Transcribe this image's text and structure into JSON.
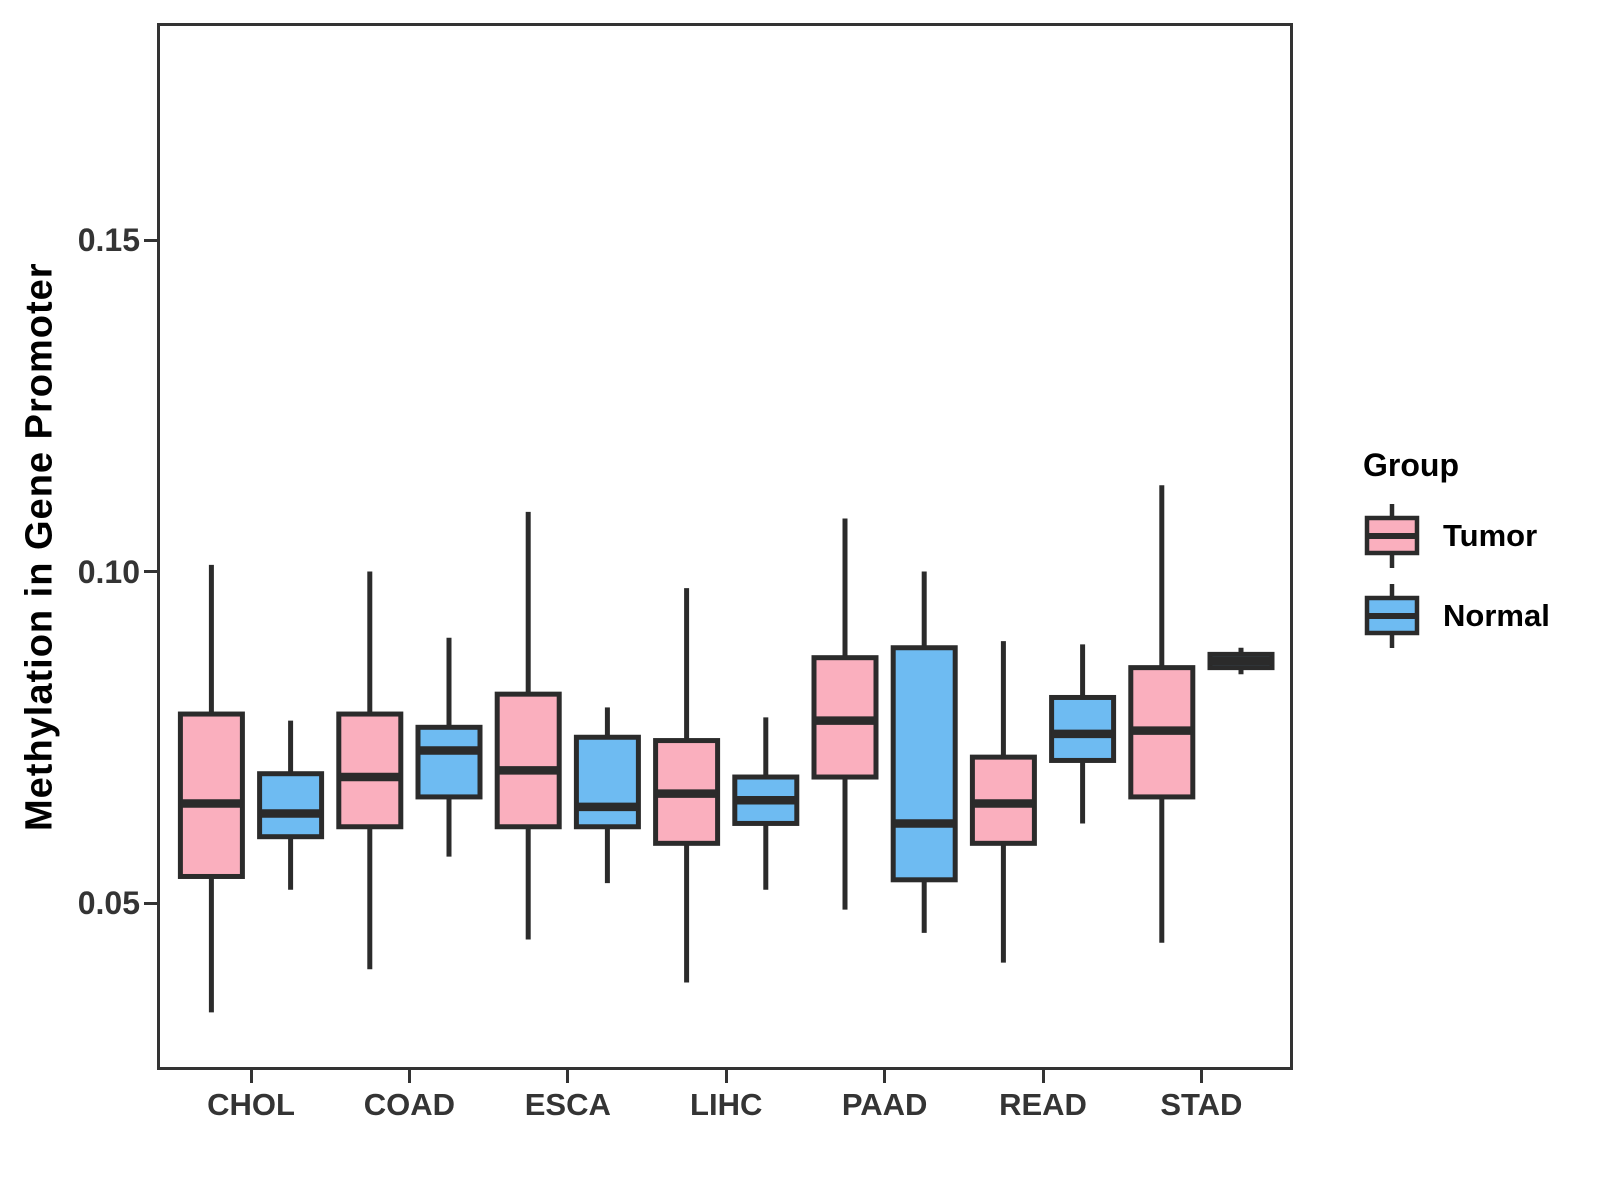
{
  "chart_data": {
    "type": "boxplot",
    "title": "",
    "xlabel": "",
    "ylabel": "Methylation in Gene Promoter",
    "categories": [
      "CHOL",
      "COAD",
      "ESCA",
      "LIHC",
      "PAAD",
      "READ",
      "STAD"
    ],
    "y_tick_labels": [
      "0.05",
      "0.10",
      "0.15"
    ],
    "y_tick_values": [
      0.05,
      0.1,
      0.15
    ],
    "ylim": [
      0.025,
      0.183
    ],
    "grid": false,
    "legend": {
      "title": "Group",
      "position": "right",
      "entries": [
        {
          "label": "Tumor",
          "color": "#FAAFBE"
        },
        {
          "label": "Normal",
          "color": "#6EBBF2"
        }
      ]
    },
    "colors": {
      "tumor_fill": "#FAAFBE",
      "normal_fill": "#6EBBF2",
      "box_outline": "#2B2B2B",
      "panel_border": "#333333",
      "tick_text": "#343434",
      "title_text": "#000000",
      "background": "#FFFFFF"
    },
    "series": [
      {
        "name": "Tumor",
        "color": "#FAAFBE",
        "boxes": [
          {
            "category": "CHOL",
            "min": 0.0335,
            "q1": 0.054,
            "median": 0.065,
            "q3": 0.0785,
            "max": 0.101
          },
          {
            "category": "COAD",
            "min": 0.04,
            "q1": 0.0615,
            "median": 0.069,
            "q3": 0.0785,
            "max": 0.1
          },
          {
            "category": "ESCA",
            "min": 0.0445,
            "q1": 0.0615,
            "median": 0.07,
            "q3": 0.0815,
            "max": 0.109
          },
          {
            "category": "LIHC",
            "min": 0.038,
            "q1": 0.059,
            "median": 0.0665,
            "q3": 0.0745,
            "max": 0.0975
          },
          {
            "category": "PAAD",
            "min": 0.049,
            "q1": 0.069,
            "median": 0.0775,
            "q3": 0.087,
            "max": 0.108
          },
          {
            "category": "READ",
            "min": 0.041,
            "q1": 0.059,
            "median": 0.065,
            "q3": 0.072,
            "max": 0.0895
          },
          {
            "category": "STAD",
            "min": 0.044,
            "q1": 0.066,
            "median": 0.076,
            "q3": 0.0855,
            "max": 0.113
          }
        ]
      },
      {
        "name": "Normal",
        "color": "#6EBBF2",
        "boxes": [
          {
            "category": "CHOL",
            "min": 0.052,
            "q1": 0.06,
            "median": 0.0635,
            "q3": 0.0695,
            "max": 0.0775
          },
          {
            "category": "COAD",
            "min": 0.057,
            "q1": 0.066,
            "median": 0.073,
            "q3": 0.0765,
            "max": 0.09
          },
          {
            "category": "ESCA",
            "min": 0.053,
            "q1": 0.0615,
            "median": 0.0645,
            "q3": 0.075,
            "max": 0.0795
          },
          {
            "category": "LIHC",
            "min": 0.052,
            "q1": 0.062,
            "median": 0.0655,
            "q3": 0.069,
            "max": 0.078
          },
          {
            "category": "PAAD",
            "min": 0.0455,
            "q1": 0.0535,
            "median": 0.062,
            "q3": 0.0885,
            "max": 0.1
          },
          {
            "category": "READ",
            "min": 0.062,
            "q1": 0.0715,
            "median": 0.0755,
            "q3": 0.081,
            "max": 0.089
          },
          {
            "category": "STAD",
            "min": 0.0845,
            "q1": 0.0855,
            "median": 0.0865,
            "q3": 0.0875,
            "max": 0.0885
          }
        ]
      }
    ]
  }
}
